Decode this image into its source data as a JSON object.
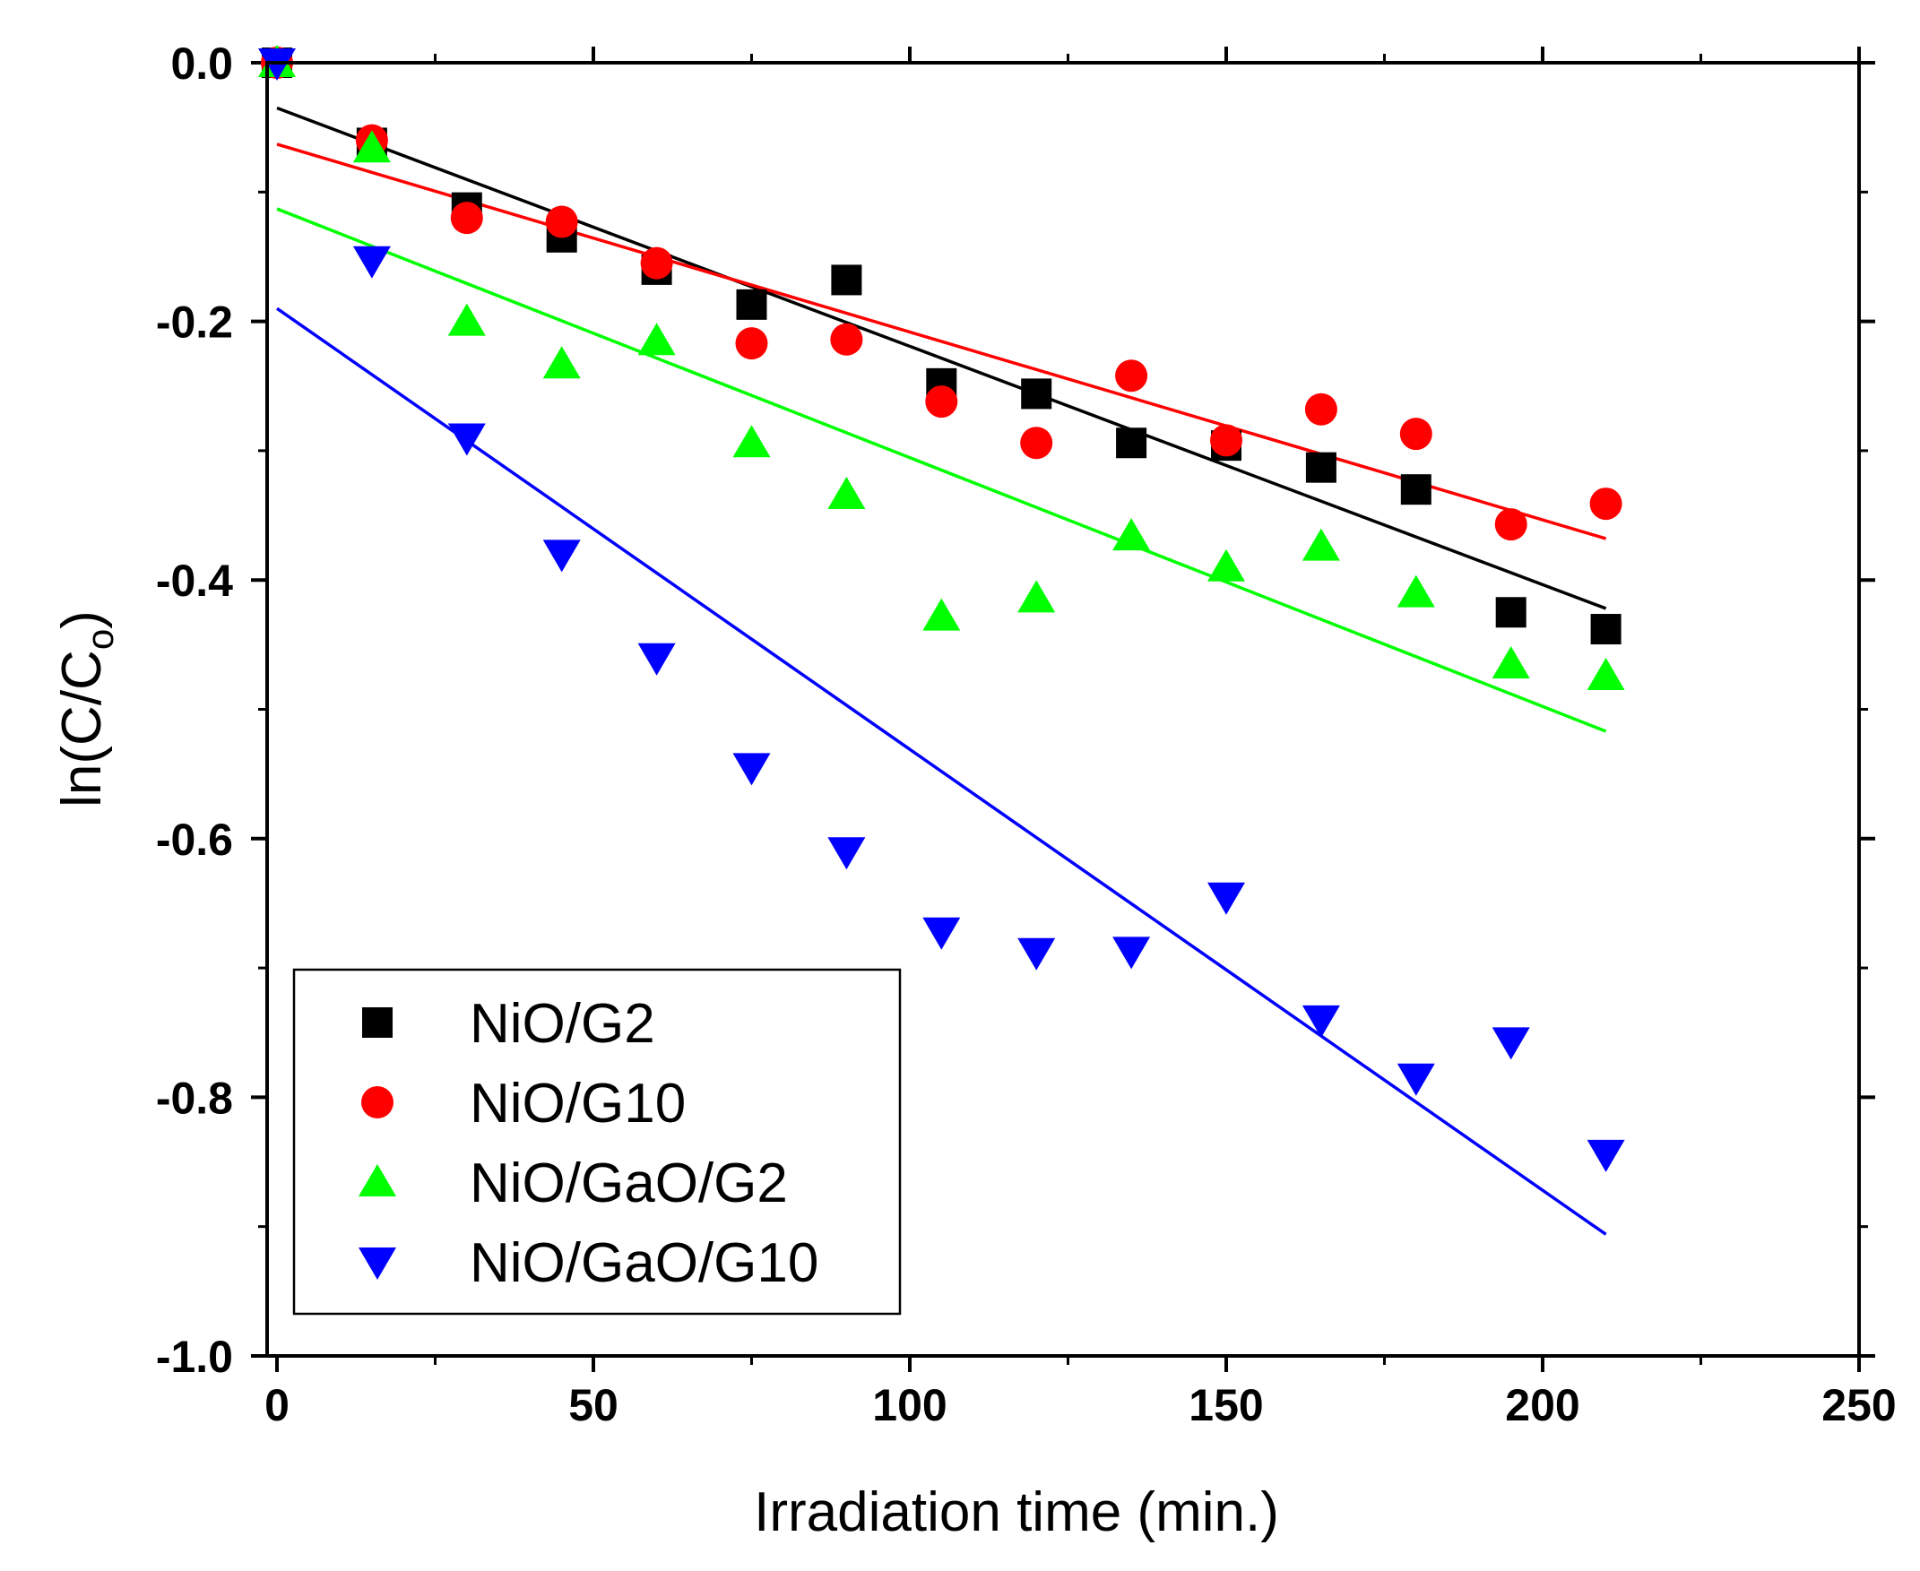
{
  "chart_data": {
    "type": "scatter",
    "title": "",
    "xlabel": "Irradiation time (min.)",
    "ylabel_main": "ln(C/C",
    "ylabel_sub": "o",
    "ylabel_close": ")",
    "xlim": [
      -2,
      250
    ],
    "ylim": [
      -1.0,
      0.0
    ],
    "xticks": [
      0,
      50,
      100,
      150,
      200,
      250
    ],
    "xtick_labels": [
      "0",
      "50",
      "100",
      "150",
      "200",
      "250"
    ],
    "yticks": [
      0.0,
      -0.2,
      -0.4,
      -0.6,
      -0.8,
      -1.0
    ],
    "ytick_labels": [
      "0.0",
      "-0.2",
      "-0.4",
      "-0.6",
      "-0.8",
      "-1.0"
    ],
    "legend_position": "bottom-left",
    "x": [
      0,
      15,
      30,
      45,
      60,
      75,
      90,
      105,
      120,
      135,
      150,
      165,
      180,
      195,
      210
    ],
    "series": [
      {
        "name": "NiO/G2",
        "marker": "square",
        "color": "#000000",
        "values": [
          0.0,
          -0.062,
          -0.112,
          -0.135,
          -0.16,
          -0.187,
          -0.168,
          -0.248,
          -0.256,
          -0.294,
          -0.296,
          -0.313,
          -0.33,
          -0.425,
          -0.438
        ],
        "fit": [
          -0.035,
          -0.422
        ]
      },
      {
        "name": "NiO/G10",
        "marker": "circle",
        "color": "#ff0000",
        "values": [
          0.0,
          -0.06,
          -0.12,
          -0.123,
          -0.155,
          -0.217,
          -0.214,
          -0.262,
          -0.294,
          -0.242,
          -0.292,
          -0.268,
          -0.287,
          -0.357,
          -0.341
        ],
        "fit": [
          -0.063,
          -0.368
        ]
      },
      {
        "name": "NiO/GaO/G2",
        "marker": "triangle-up",
        "color": "#00ff00",
        "values": [
          0.0,
          -0.066,
          -0.2,
          -0.233,
          -0.215,
          -0.294,
          -0.334,
          -0.428,
          -0.414,
          -0.366,
          -0.39,
          -0.374,
          -0.41,
          -0.465,
          -0.474
        ],
        "fit": [
          -0.113,
          -0.517
        ]
      },
      {
        "name": "NiO/GaO/G10",
        "marker": "triangle-down",
        "color": "#0000ff",
        "values": [
          0.0,
          -0.153,
          -0.29,
          -0.38,
          -0.46,
          -0.545,
          -0.61,
          -0.672,
          -0.688,
          -0.687,
          -0.645,
          -0.74,
          -0.785,
          -0.757,
          -0.844
        ],
        "fit": [
          -0.19,
          -0.906
        ]
      }
    ]
  }
}
